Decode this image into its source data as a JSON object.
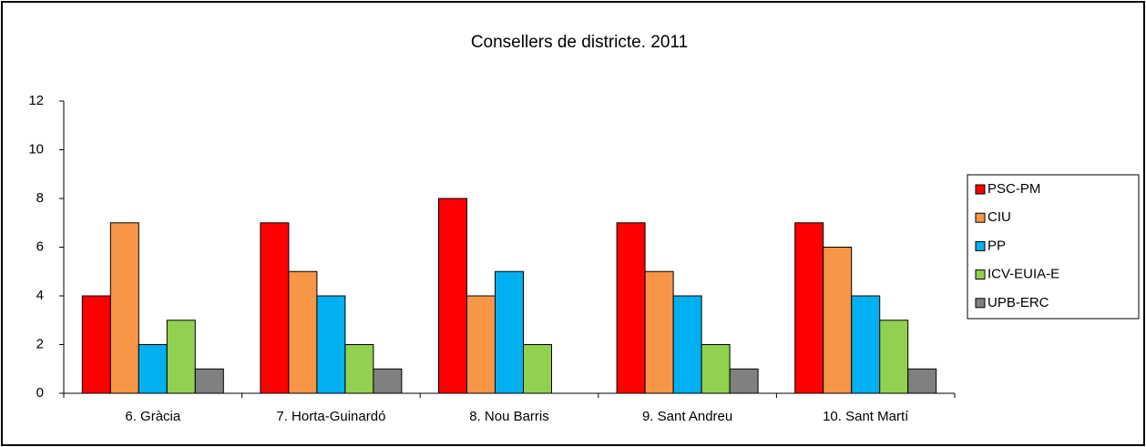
{
  "chart_data": {
    "type": "bar",
    "title": "Consellers de districte. 2011",
    "categories": [
      "6. Gràcia",
      "7. Horta-Guinardó",
      "8. Nou Barris",
      "9. Sant Andreu",
      "10. Sant Martí"
    ],
    "series": [
      {
        "name": "PSC-PM",
        "color": "#ff0000",
        "values": [
          4,
          7,
          8,
          7,
          7
        ]
      },
      {
        "name": "CIU",
        "color": "#f79646",
        "values": [
          7,
          5,
          4,
          5,
          6
        ]
      },
      {
        "name": "PP",
        "color": "#00b0f0",
        "values": [
          2,
          4,
          5,
          4,
          4
        ]
      },
      {
        "name": "ICV-EUIA-E",
        "color": "#92d050",
        "values": [
          3,
          2,
          2,
          2,
          3
        ]
      },
      {
        "name": "UPB-ERC",
        "color": "#808080",
        "values": [
          1,
          1,
          0,
          1,
          1
        ]
      }
    ],
    "ylim": [
      0,
      12
    ],
    "yticks": [
      0,
      2,
      4,
      6,
      8,
      10,
      12
    ],
    "grid": false,
    "legend": "right"
  }
}
